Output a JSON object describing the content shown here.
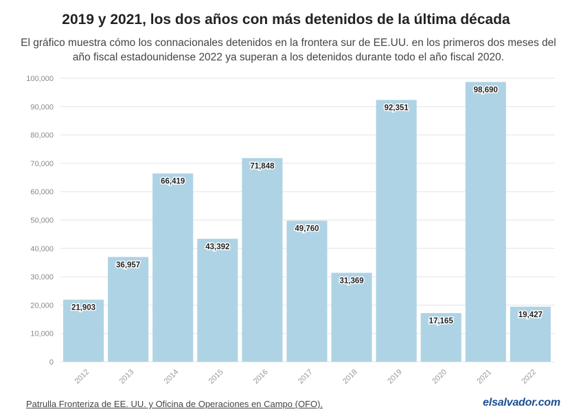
{
  "title": "2019 y 2021, los dos años con más detenidos de la última década",
  "subtitle": "El gráfico muestra cómo los connacionales detenidos en la frontera sur de EE.UU. en los primeros dos meses del año fiscal estadounidense 2022 ya superan a los detenidos durante todo el año fiscal 2020.",
  "source": "Patrulla Fronteriza de EE. UU. y Oficina de Operaciones en Campo (OFO).",
  "brand": "elsalvador.com",
  "colors": {
    "bar": "#aed3e5",
    "grid": "#e3e3e3",
    "axis_text": "#888888"
  },
  "chart_data": {
    "type": "bar",
    "categories": [
      "2012",
      "2013",
      "2014",
      "2015",
      "2016",
      "2017",
      "2018",
      "2019",
      "2020",
      "2021",
      "2022"
    ],
    "values": [
      21903,
      36957,
      66419,
      43392,
      71848,
      49760,
      31369,
      92351,
      17165,
      98690,
      19427
    ],
    "value_labels": [
      "21,903",
      "36,957",
      "66,419",
      "43,392",
      "71,848",
      "49,760",
      "31,369",
      "92,351",
      "17,165",
      "98,690",
      "19,427"
    ],
    "y_ticks": [
      0,
      10000,
      20000,
      30000,
      40000,
      50000,
      60000,
      70000,
      80000,
      90000,
      100000
    ],
    "y_tick_labels": [
      "0",
      "10,000",
      "20,000",
      "30,000",
      "40,000",
      "50,000",
      "60,000",
      "70,000",
      "80,000",
      "90,000",
      "100,000"
    ],
    "ylim": [
      0,
      100000
    ],
    "grid": true,
    "legend": "none"
  }
}
